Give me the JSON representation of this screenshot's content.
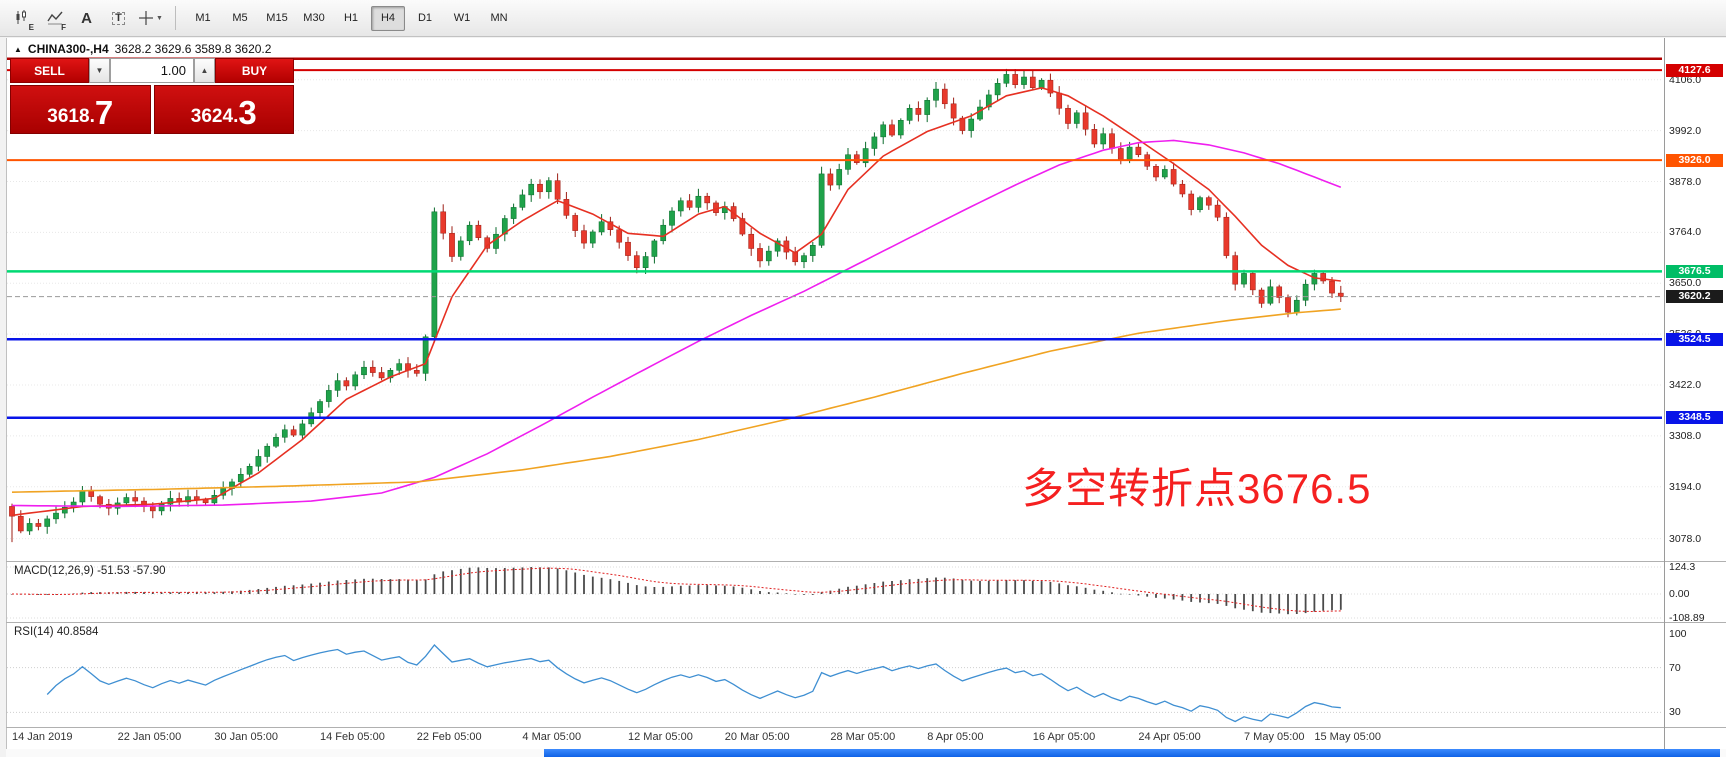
{
  "toolbar": {
    "icons": [
      {
        "name": "charts-icon",
        "sub": "E"
      },
      {
        "name": "indicators-icon",
        "sub": "F"
      },
      {
        "name": "text-tool-icon",
        "glyph": "A"
      },
      {
        "name": "label-tool-icon",
        "glyph": "T"
      },
      {
        "name": "crosshair-tool-icon",
        "caret": "▼"
      }
    ],
    "timeframes": [
      "M1",
      "M5",
      "M15",
      "M30",
      "H1",
      "H4",
      "D1",
      "W1",
      "MN"
    ],
    "active_timeframe": "H4"
  },
  "chart_header": {
    "collapse_glyph": "▲",
    "symbol": "CHINA300-,H4",
    "ohlc": "3628.2 3629.6 3589.8 3620.2"
  },
  "trade_panel": {
    "sell_label": "SELL",
    "buy_label": "BUY",
    "volume": "1.00",
    "spinner_down": "▼",
    "spinner_up": "▲",
    "sell_price": "3618.",
    "sell_price_big": "7",
    "buy_price": "3624.",
    "buy_price_big": "3"
  },
  "annotation": {
    "text": "多空转折点3676.5",
    "color": "#f52020"
  },
  "price_axis": {
    "gridlines": [
      {
        "label": "4106.0",
        "value": 4106
      },
      {
        "label": "3992.0",
        "value": 3992
      },
      {
        "label": "3878.0",
        "value": 3878
      },
      {
        "label": "3764.0",
        "value": 3764
      },
      {
        "label": "3650.0",
        "value": 3650
      },
      {
        "label": "3536.0",
        "value": 3536
      },
      {
        "label": "3422.0",
        "value": 3422
      },
      {
        "label": "3308.0",
        "value": 3308
      },
      {
        "label": "3194.0",
        "value": 3194
      },
      {
        "label": "3078.0",
        "value": 3078
      }
    ]
  },
  "chart_data": {
    "type": "candlestick",
    "symbol": "CHINA300-",
    "timeframe": "H4",
    "ohlc_display": {
      "open": 3628.2,
      "high": 3629.6,
      "low": 3589.8,
      "close": 3620.2
    },
    "candles": {
      "first_open": 3150,
      "up_color": "#1fa24a",
      "up_border": "#0b6b2c",
      "down_color": "#e8392c",
      "down_border": "#9c1f16",
      "closes": [
        3128,
        3095,
        3112,
        3105,
        3122,
        3135,
        3148,
        3160,
        3185,
        3172,
        3155,
        3146,
        3158,
        3170,
        3162,
        3150,
        3140,
        3155,
        3168,
        3160,
        3172,
        3165,
        3158,
        3175,
        3190,
        3205,
        3222,
        3240,
        3262,
        3285,
        3305,
        3322,
        3310,
        3335,
        3360,
        3385,
        3410,
        3432,
        3420,
        3445,
        3462,
        3450,
        3438,
        3455,
        3470,
        3455,
        3448,
        3530,
        3810,
        3762,
        3710,
        3745,
        3780,
        3752,
        3728,
        3760,
        3795,
        3820,
        3848,
        3872,
        3855,
        3880,
        3838,
        3802,
        3768,
        3740,
        3765,
        3788,
        3770,
        3742,
        3712,
        3685,
        3710,
        3745,
        3780,
        3812,
        3835,
        3820,
        3845,
        3830,
        3808,
        3822,
        3795,
        3760,
        3728,
        3700,
        3722,
        3745,
        3720,
        3698,
        3712,
        3735,
        3895,
        3870,
        3905,
        3938,
        3920,
        3952,
        3978,
        4005,
        3982,
        4015,
        4042,
        4028,
        4060,
        4085,
        4052,
        4020,
        3992,
        4018,
        4045,
        4072,
        4098,
        4118,
        4095,
        4112,
        4088,
        4105,
        4076,
        4042,
        4008,
        4032,
        3995,
        3962,
        3985,
        3952,
        3928,
        3955,
        3938,
        3912,
        3888,
        3905,
        3872,
        3850,
        3815,
        3842,
        3825,
        3798,
        3712,
        3648,
        3672,
        3635,
        3605,
        3642,
        3618,
        3585,
        3612,
        3648,
        3672,
        3655,
        3628,
        3620.2
      ]
    },
    "moving_averages": [
      {
        "name": "ma-fast-red",
        "color": "#e63022",
        "points": [
          [
            0,
            3130
          ],
          [
            8,
            3150
          ],
          [
            16,
            3155
          ],
          [
            23,
            3168
          ],
          [
            28,
            3225
          ],
          [
            33,
            3300
          ],
          [
            38,
            3390
          ],
          [
            43,
            3440
          ],
          [
            47,
            3470
          ],
          [
            50,
            3620
          ],
          [
            54,
            3735
          ],
          [
            58,
            3790
          ],
          [
            62,
            3835
          ],
          [
            66,
            3805
          ],
          [
            70,
            3762
          ],
          [
            74,
            3755
          ],
          [
            78,
            3805
          ],
          [
            81,
            3822
          ],
          [
            85,
            3762
          ],
          [
            89,
            3718
          ],
          [
            92,
            3760
          ],
          [
            95,
            3860
          ],
          [
            99,
            3935
          ],
          [
            104,
            3990
          ],
          [
            109,
            4025
          ],
          [
            113,
            4070
          ],
          [
            117,
            4088
          ],
          [
            120,
            4070
          ],
          [
            124,
            4025
          ],
          [
            128,
            3972
          ],
          [
            132,
            3918
          ],
          [
            136,
            3860
          ],
          [
            139,
            3800
          ],
          [
            142,
            3735
          ],
          [
            145,
            3690
          ],
          [
            148,
            3662
          ],
          [
            151,
            3655
          ]
        ]
      },
      {
        "name": "ma-mid-magenta",
        "color": "#ef1fef",
        "points": [
          [
            0,
            3152
          ],
          [
            12,
            3150
          ],
          [
            24,
            3153
          ],
          [
            34,
            3162
          ],
          [
            42,
            3180
          ],
          [
            48,
            3215
          ],
          [
            54,
            3268
          ],
          [
            60,
            3330
          ],
          [
            66,
            3395
          ],
          [
            72,
            3458
          ],
          [
            78,
            3520
          ],
          [
            84,
            3578
          ],
          [
            90,
            3632
          ],
          [
            96,
            3692
          ],
          [
            102,
            3752
          ],
          [
            108,
            3812
          ],
          [
            114,
            3870
          ],
          [
            119,
            3915
          ],
          [
            124,
            3948
          ],
          [
            128,
            3965
          ],
          [
            132,
            3970
          ],
          [
            136,
            3960
          ],
          [
            140,
            3942
          ],
          [
            144,
            3918
          ],
          [
            148,
            3888
          ],
          [
            151,
            3865
          ]
        ]
      },
      {
        "name": "ma-slow-orange",
        "color": "#f0a322",
        "points": [
          [
            0,
            3182
          ],
          [
            16,
            3188
          ],
          [
            32,
            3196
          ],
          [
            46,
            3205
          ],
          [
            58,
            3232
          ],
          [
            68,
            3262
          ],
          [
            78,
            3300
          ],
          [
            88,
            3345
          ],
          [
            98,
            3395
          ],
          [
            108,
            3448
          ],
          [
            118,
            3498
          ],
          [
            128,
            3538
          ],
          [
            138,
            3566
          ],
          [
            146,
            3584
          ],
          [
            151,
            3592
          ]
        ]
      }
    ],
    "levels": [
      {
        "name": "resistance-line-upper",
        "price": 4153,
        "color": "#b00000",
        "width": 2.5
      },
      {
        "name": "resistance-line-4127",
        "price": 4127.6,
        "color": "#d40000",
        "width": 2,
        "label": "4127.6",
        "label_bg": "#d40000"
      },
      {
        "name": "resistance-line-3926",
        "price": 3926,
        "color": "#ff5400",
        "width": 2,
        "label": "3926.0",
        "label_bg": "#ff5400"
      },
      {
        "name": "pivot-line-3676",
        "price": 3676.5,
        "color": "#00d973",
        "width": 2.5,
        "label": "3676.5",
        "label_bg": "#00bd66"
      },
      {
        "name": "current-price-line",
        "price": 3620.2,
        "color": "#9a9a9a",
        "width": 1,
        "dash": true,
        "label": "3620.2",
        "label_bg": "#1b1b1b"
      },
      {
        "name": "support-line-3524",
        "price": 3524.5,
        "color": "#0814e8",
        "width": 2.5,
        "label": "3524.5",
        "label_bg": "#0814e8"
      },
      {
        "name": "support-line-3348",
        "price": 3348.5,
        "color": "#0814e8",
        "width": 2.5,
        "label": "3348.5",
        "label_bg": "#0814e8"
      }
    ],
    "macd": {
      "header": "MACD(12,26,9) -51.53 -57.90",
      "fast": 12,
      "slow": 26,
      "signal": 9,
      "current_macd": -51.53,
      "current_signal": -57.9,
      "axis_labels": [
        "124.3",
        "0.00",
        "-108.89"
      ]
    },
    "rsi": {
      "header": "RSI(14) 40.8584",
      "period": 14,
      "value": 40.8584,
      "axis_labels": [
        "100",
        "70",
        "30"
      ],
      "levels": [
        70,
        30
      ]
    },
    "time_axis": [
      {
        "text": "14 Jan 2019",
        "i": 0
      },
      {
        "text": "22 Jan 05:00",
        "i": 12
      },
      {
        "text": "30 Jan 05:00",
        "i": 23
      },
      {
        "text": "14 Feb 05:00",
        "i": 35
      },
      {
        "text": "22 Feb 05:00",
        "i": 46
      },
      {
        "text": "4 Mar 05:00",
        "i": 58
      },
      {
        "text": "12 Mar 05:00",
        "i": 70
      },
      {
        "text": "20 Mar 05:00",
        "i": 81
      },
      {
        "text": "28 Mar 05:00",
        "i": 93
      },
      {
        "text": "8 Apr 05:00",
        "i": 104
      },
      {
        "text": "16 Apr 05:00",
        "i": 116
      },
      {
        "text": "24 Apr 05:00",
        "i": 128
      },
      {
        "text": "7 May 05:00",
        "i": 140
      },
      {
        "text": "15 May 05:00",
        "i": 148
      }
    ]
  }
}
